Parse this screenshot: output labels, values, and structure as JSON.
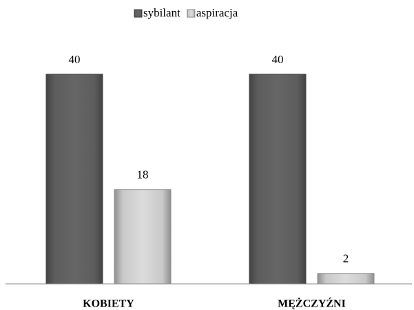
{
  "chart_data": {
    "type": "bar",
    "categories": [
      "KOBIETY",
      "MĘŻCZYŹNI"
    ],
    "series": [
      {
        "name": "sybilant",
        "color": "#595959",
        "values": [
          40,
          40
        ]
      },
      {
        "name": "aspiracja",
        "color": "#bfbfbf",
        "values": [
          18,
          2
        ]
      }
    ],
    "legend": "top"
  }
}
